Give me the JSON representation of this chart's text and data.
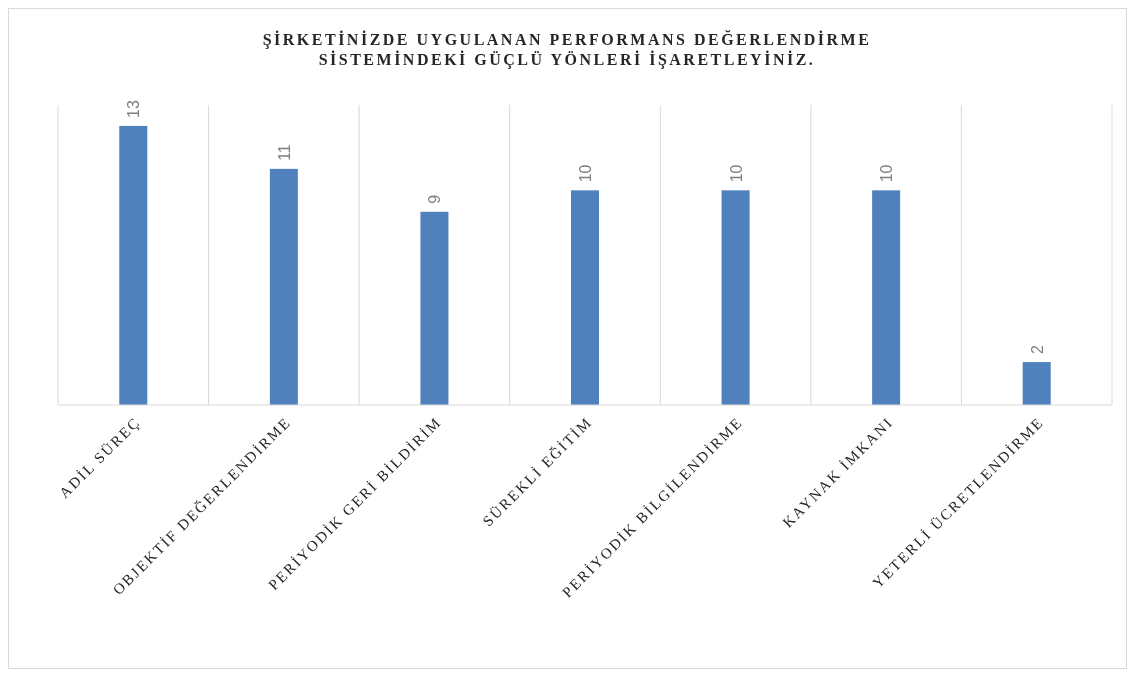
{
  "chart_data": {
    "type": "bar",
    "title": "ŞİRKETİNİZDE UYGULANAN PERFORMANS DEĞERLENDİRME\nSİSTEMİNDEKİ GÜÇLÜ YÖNLERİ İŞARETLEYİNİZ.",
    "categories": [
      "ADİL SÜREÇ",
      "OBJEKTİF DEĞERLENDİRME",
      "PERİYODİK GERİ BİLDİRİM",
      "SÜREKLİ EĞİTİM",
      "PERİYODİK BİLGİLENDİRME",
      "KAYNAK İMKANI",
      "YETERLİ ÜCRETLENDİRME"
    ],
    "values": [
      13,
      11,
      9,
      10,
      10,
      10,
      2
    ],
    "color": "#4f81bd",
    "data_labels": true,
    "grid": "x"
  }
}
